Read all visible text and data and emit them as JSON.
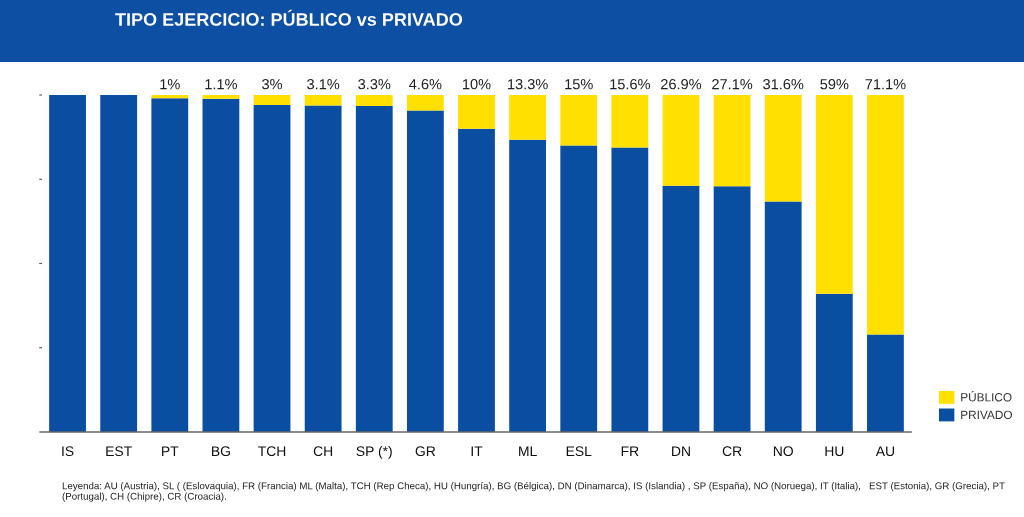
{
  "chart_data": {
    "type": "bar",
    "stacked": true,
    "title": "TIPO EJERCICIO: PÚBLICO vs PRIVADO",
    "categories": [
      "IS",
      "EST",
      "PT",
      "BG",
      "TCH",
      "CH",
      "SP (*)",
      "GR",
      "IT",
      "ML",
      "ESL",
      "FR",
      "DN",
      "CR",
      "NO",
      "HU",
      "AU"
    ],
    "series": [
      {
        "name": "PRIVADO",
        "color": "#0a4ea2",
        "values": [
          100,
          100,
          99,
          98.9,
          97,
          96.9,
          96.7,
          95.4,
          90,
          86.7,
          85,
          84.4,
          73.1,
          72.9,
          68.4,
          41,
          28.9
        ]
      },
      {
        "name": "PÚBLICO",
        "color": "#ffe000",
        "values": [
          0,
          0,
          1,
          1.1,
          3,
          3.1,
          3.3,
          4.6,
          10,
          13.3,
          15,
          15.6,
          26.9,
          27.1,
          31.6,
          59,
          71.1
        ],
        "value_labels": [
          null,
          null,
          "1%",
          "1.1%",
          "3%",
          "3.1%",
          "3.3%",
          "4.6%",
          "10%",
          "13.3%",
          "15%",
          "15.6%",
          "26.9%",
          "27.1%",
          "31.6%",
          "59%",
          "71.1%"
        ]
      }
    ],
    "ylim": [
      0,
      100
    ],
    "yticks": [
      {
        "value": 0,
        "label": null
      },
      {
        "value": 25,
        "label": null
      },
      {
        "value": 50,
        "label": null
      },
      {
        "value": 75,
        "label": null
      },
      {
        "value": 100,
        "label": null
      }
    ],
    "tick_labels": "x",
    "legend": "bottom right",
    "annotations": [
      "Leyenda: AU (Austria), SL ( (Eslovaquia), FR (Francia) ML (Malta), TCH (Rep Checa), HU (Hungría), BG (Bélgica), DN (Dinamarca), IS (Islandia) , SP (España), NO (Noruega), IT (Italia),   EST (Estonia), GR (Grecia), PT (Portugal), CH (Chipre), CR (Croacia)."
    ]
  }
}
